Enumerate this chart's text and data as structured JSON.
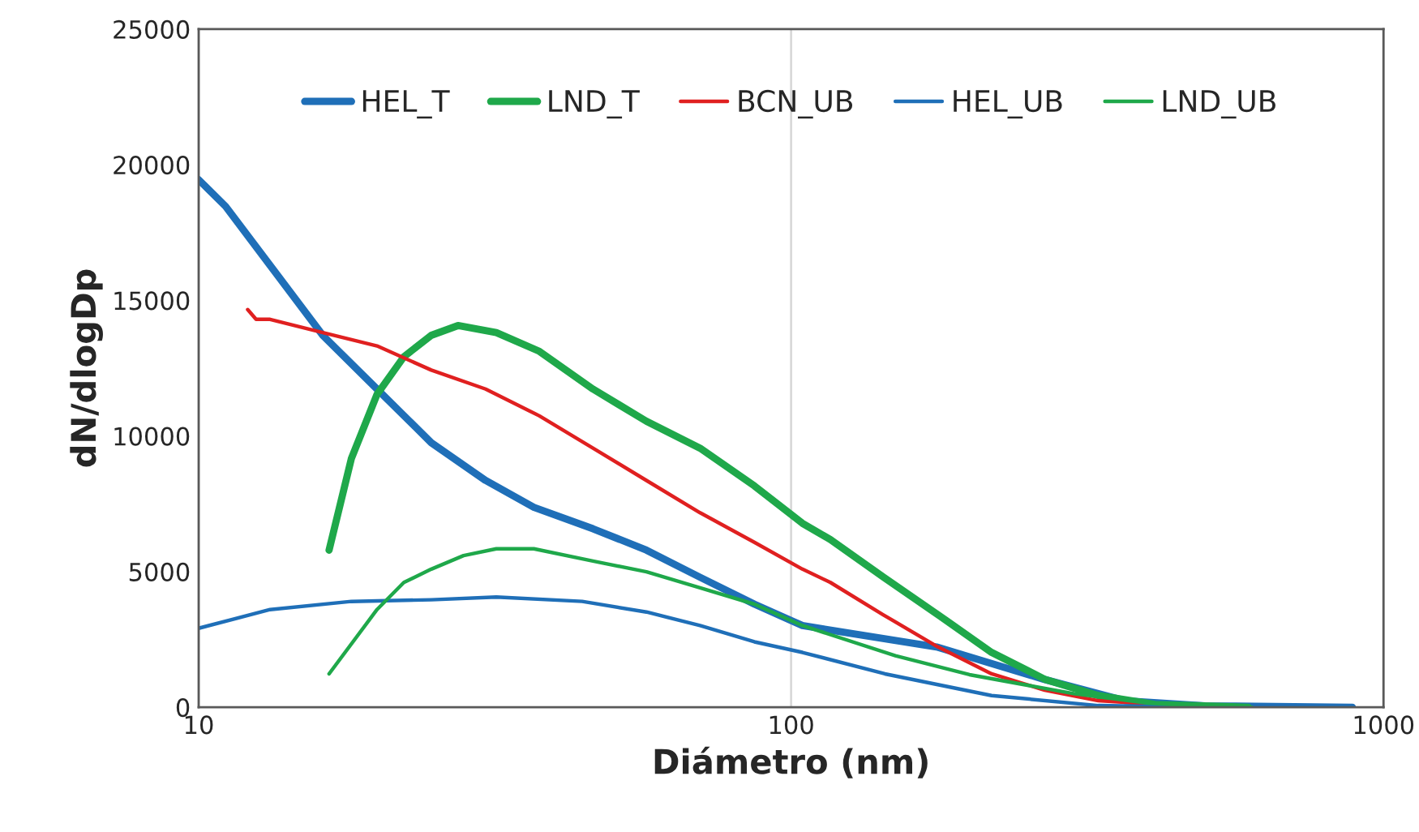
{
  "chart_data": {
    "type": "line",
    "xlabel": "Diámetro (nm)",
    "ylabel": "dN/dlogDp",
    "log": "x",
    "xlim": [
      10,
      1000
    ],
    "xticks": [
      10,
      100,
      1000
    ],
    "ylim": [
      0,
      25000
    ],
    "yticks": [
      0,
      5000,
      10000,
      15000,
      20000,
      25000
    ],
    "grid": "x",
    "legend": "top",
    "marker": "none",
    "line_style": "solid",
    "series": [
      {
        "name": "HEL_T",
        "color": "#1f6fb8",
        "x": [
          10,
          11.1,
          13.2,
          16.2,
          20,
          24.7,
          30.5,
          36.8,
          46.3,
          57,
          70.2,
          86.7,
          104.5,
          176,
          267,
          366,
          500,
          886
        ],
        "values": [
          19450,
          18470,
          16290,
          13710,
          11730,
          9750,
          8360,
          7370,
          6580,
          5790,
          4790,
          3800,
          3010,
          2220,
          1030,
          240,
          50,
          0
        ]
      },
      {
        "name": "LND_T",
        "color": "#1fa84a",
        "x": [
          16.6,
          18.1,
          20,
          22.2,
          24.7,
          27.4,
          31.8,
          37.6,
          46.3,
          57,
          70.2,
          86.7,
          104.5,
          116.5,
          143.3,
          177,
          218,
          268,
          330,
          411,
          591
        ],
        "values": [
          5790,
          9160,
          11530,
          12920,
          13710,
          14070,
          13810,
          13120,
          11730,
          10540,
          9550,
          8160,
          6780,
          6180,
          4790,
          3410,
          2020,
          1030,
          430,
          100,
          0
        ]
      },
      {
        "name": "BCN_UB",
        "color": "#e02020",
        "x": [
          12.1,
          12.5,
          13.2,
          16.2,
          20,
          24.7,
          30.5,
          37.6,
          46.3,
          57,
          70.2,
          86.7,
          104.5,
          116.5,
          143,
          177,
          218,
          268,
          330,
          411,
          500
        ],
        "values": [
          14660,
          14300,
          14300,
          13810,
          13320,
          12430,
          11730,
          10740,
          9550,
          8360,
          7170,
          6080,
          5090,
          4600,
          3410,
          2220,
          1230,
          630,
          240,
          null,
          0
        ]
      },
      {
        "name": "HEL_UB",
        "color": "#1f6fb8",
        "x": [
          10,
          13.2,
          18.1,
          24.7,
          31.8,
          44.4,
          57,
          70.2,
          86.7,
          104.5,
          144,
          218,
          330,
          500,
          800
        ],
        "values": [
          2910,
          3600,
          3900,
          3960,
          4060,
          3900,
          3510,
          3010,
          2410,
          2020,
          1230,
          430,
          60,
          0,
          0
        ]
      },
      {
        "name": "LND_UB",
        "color": "#1fa84a",
        "x": [
          16.6,
          20,
          22.2,
          24.7,
          28,
          31.8,
          36.8,
          46.3,
          57,
          70.2,
          86.7,
          104.5,
          150,
          200,
          300,
          400,
          500,
          600
        ],
        "values": [
          1230,
          3600,
          4600,
          5090,
          5590,
          5840,
          5840,
          5390,
          4990,
          4400,
          3800,
          3010,
          1900,
          1200,
          500,
          150,
          30,
          0
        ]
      }
    ]
  }
}
